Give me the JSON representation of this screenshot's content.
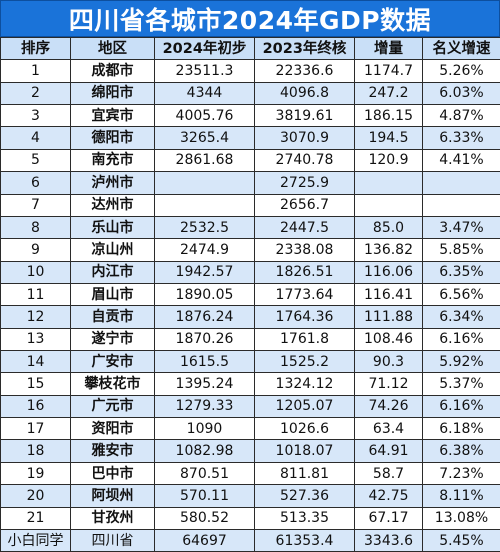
{
  "title": "四川省各城市2024年GDP数据",
  "columns": [
    "排序",
    "地区",
    "2024年初步",
    "2023年终核",
    "增量",
    "名义增速"
  ],
  "rows": [
    [
      "1",
      "成都市",
      "23511.3",
      "22336.6",
      "1174.7",
      "5.26%"
    ],
    [
      "2",
      "绵阳市",
      "4344",
      "4096.8",
      "247.2",
      "6.03%"
    ],
    [
      "3",
      "宜宾市",
      "4005.76",
      "3819.61",
      "186.15",
      "4.87%"
    ],
    [
      "4",
      "德阳市",
      "3265.4",
      "3070.9",
      "194.5",
      "6.33%"
    ],
    [
      "5",
      "南充市",
      "2861.68",
      "2740.78",
      "120.9",
      "4.41%"
    ],
    [
      "6",
      "泸州市",
      "",
      "2725.9",
      "",
      ""
    ],
    [
      "7",
      "达州市",
      "",
      "2656.7",
      "",
      ""
    ],
    [
      "8",
      "乐山市",
      "2532.5",
      "2447.5",
      "85.0",
      "3.47%"
    ],
    [
      "9",
      "凉山州",
      "2474.9",
      "2338.08",
      "136.82",
      "5.85%"
    ],
    [
      "10",
      "内江市",
      "1942.57",
      "1826.51",
      "116.06",
      "6.35%"
    ],
    [
      "11",
      "眉山市",
      "1890.05",
      "1773.64",
      "116.41",
      "6.56%"
    ],
    [
      "12",
      "自贡市",
      "1876.24",
      "1764.36",
      "111.88",
      "6.34%"
    ],
    [
      "13",
      "遂宁市",
      "1870.26",
      "1761.8",
      "108.46",
      "6.16%"
    ],
    [
      "14",
      "广安市",
      "1615.5",
      "1525.2",
      "90.3",
      "5.92%"
    ],
    [
      "15",
      "攀枝花市",
      "1395.24",
      "1324.12",
      "71.12",
      "5.37%"
    ],
    [
      "16",
      "广元市",
      "1279.33",
      "1205.07",
      "74.26",
      "6.16%"
    ],
    [
      "17",
      "资阳市",
      "1090",
      "1026.6",
      "63.4",
      "6.18%"
    ],
    [
      "18",
      "雅安市",
      "1082.98",
      "1018.07",
      "64.91",
      "6.38%"
    ],
    [
      "19",
      "巴中市",
      "870.51",
      "811.81",
      "58.7",
      "7.23%"
    ],
    [
      "20",
      "阿坝州",
      "570.11",
      "527.36",
      "42.75",
      "8.11%"
    ],
    [
      "21",
      "甘孜州",
      "580.52",
      "513.35",
      "67.17",
      "13.08%"
    ],
    [
      "小白同学",
      "四川省",
      "64697",
      "61353.4",
      "3343.6",
      "5.45%"
    ]
  ]
}
